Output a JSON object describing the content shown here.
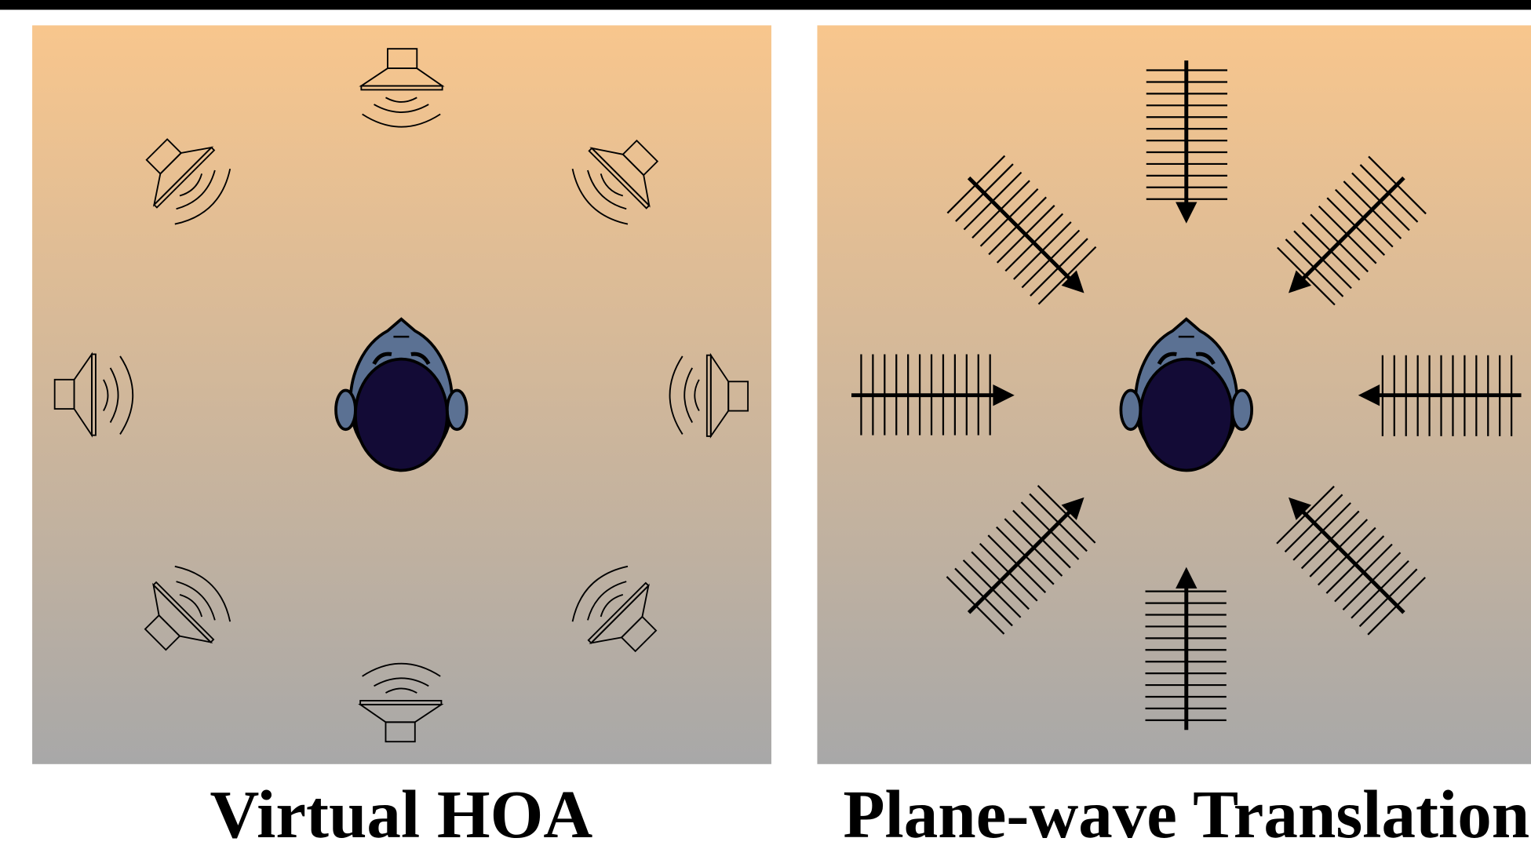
{
  "panels": [
    {
      "title": "Virtual HOA"
    },
    {
      "title": "Plane-wave Translation"
    }
  ]
}
